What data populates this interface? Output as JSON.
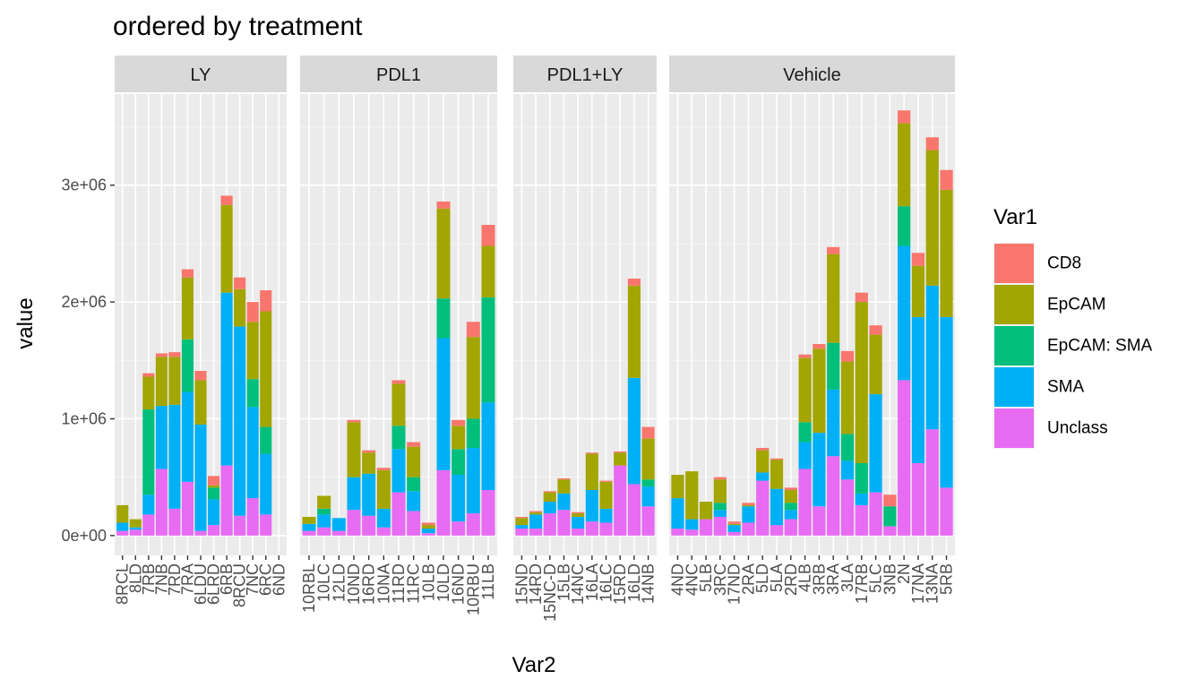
{
  "chart_data": {
    "type": "bar",
    "stacked": true,
    "title": "ordered by treatment",
    "xlabel": "Var2",
    "ylabel": "value",
    "ylim": [
      -170000,
      3780000
    ],
    "yticks": [
      {
        "value": 0,
        "label": "0e+00"
      },
      {
        "value": 1000000,
        "label": "1e+06"
      },
      {
        "value": 2000000,
        "label": "2e+06"
      },
      {
        "value": 3000000,
        "label": "3e+06"
      }
    ],
    "series_order": [
      "Unclass",
      "SMA",
      "EpCAM: SMA",
      "EpCAM",
      "CD8"
    ],
    "legend": {
      "title": "Var1",
      "position": "right",
      "entries": [
        {
          "name": "CD8",
          "color": "#F8766D"
        },
        {
          "name": "EpCAM",
          "color": "#A3A500"
        },
        {
          "name": "EpCAM: SMA",
          "color": "#00BF7D"
        },
        {
          "name": "SMA",
          "color": "#00B0F6"
        },
        {
          "name": "Unclass",
          "color": "#E76BF3"
        }
      ]
    },
    "facets": [
      {
        "name": "LY",
        "bars": [
          {
            "label": "8RCL",
            "values": [
              40000,
              70000,
              0,
              150000,
              0
            ]
          },
          {
            "label": "8LD",
            "values": [
              50000,
              20000,
              0,
              70000,
              0
            ]
          },
          {
            "label": "7RB",
            "values": [
              180000,
              170000,
              730000,
              280000,
              30000
            ]
          },
          {
            "label": "7NB",
            "values": [
              570000,
              540000,
              0,
              420000,
              30000
            ]
          },
          {
            "label": "7RD",
            "values": [
              230000,
              890000,
              0,
              410000,
              40000
            ]
          },
          {
            "label": "7RA",
            "values": [
              460000,
              770000,
              450000,
              530000,
              70000
            ]
          },
          {
            "label": "6LDU",
            "values": [
              40000,
              910000,
              0,
              380000,
              80000
            ]
          },
          {
            "label": "6LRD",
            "values": [
              90000,
              220000,
              100000,
              20000,
              80000
            ]
          },
          {
            "label": "6RB",
            "values": [
              600000,
              1480000,
              0,
              750000,
              80000
            ]
          },
          {
            "label": "8RCU",
            "values": [
              170000,
              1620000,
              0,
              320000,
              100000
            ]
          },
          {
            "label": "7NC",
            "values": [
              320000,
              780000,
              240000,
              490000,
              170000
            ]
          },
          {
            "label": "6RC",
            "values": [
              180000,
              520000,
              230000,
              990000,
              180000
            ]
          },
          {
            "label": "6ND",
            "values": [
              0,
              0,
              0,
              0,
              0
            ]
          }
        ]
      },
      {
        "name": "PDL1",
        "bars": [
          {
            "label": "10RBL",
            "values": [
              40000,
              60000,
              0,
              60000,
              0
            ]
          },
          {
            "label": "10LC",
            "values": [
              70000,
              110000,
              50000,
              110000,
              0
            ]
          },
          {
            "label": "12LD",
            "values": [
              40000,
              110000,
              0,
              0,
              0
            ]
          },
          {
            "label": "10ND",
            "values": [
              220000,
              280000,
              0,
              470000,
              20000
            ]
          },
          {
            "label": "16RD",
            "values": [
              170000,
              360000,
              0,
              180000,
              20000
            ]
          },
          {
            "label": "10NA",
            "values": [
              70000,
              160000,
              0,
              330000,
              20000
            ]
          },
          {
            "label": "11RD",
            "values": [
              370000,
              370000,
              200000,
              360000,
              30000
            ]
          },
          {
            "label": "11RC",
            "values": [
              210000,
              170000,
              120000,
              260000,
              40000
            ]
          },
          {
            "label": "10LB",
            "values": [
              20000,
              40000,
              0,
              30000,
              20000
            ]
          },
          {
            "label": "10LD",
            "values": [
              560000,
              1130000,
              340000,
              770000,
              60000
            ]
          },
          {
            "label": "16ND",
            "values": [
              120000,
              400000,
              220000,
              200000,
              50000
            ]
          },
          {
            "label": "10RBU",
            "values": [
              190000,
              560000,
              250000,
              700000,
              130000
            ]
          },
          {
            "label": "11LB",
            "values": [
              390000,
              750000,
              900000,
              440000,
              180000
            ]
          }
        ]
      },
      {
        "name": "PDL1+LY",
        "bars": [
          {
            "label": "15ND",
            "values": [
              60000,
              30000,
              0,
              60000,
              10000
            ]
          },
          {
            "label": "14RD",
            "values": [
              60000,
              120000,
              0,
              20000,
              10000
            ]
          },
          {
            "label": "15NC-D",
            "values": [
              190000,
              100000,
              0,
              80000,
              10000
            ]
          },
          {
            "label": "15LB",
            "values": [
              220000,
              140000,
              0,
              120000,
              10000
            ]
          },
          {
            "label": "14NC",
            "values": [
              60000,
              100000,
              0,
              30000,
              10000
            ]
          },
          {
            "label": "16LA",
            "values": [
              120000,
              270000,
              0,
              310000,
              10000
            ]
          },
          {
            "label": "16LC",
            "values": [
              110000,
              120000,
              0,
              230000,
              10000
            ]
          },
          {
            "label": "15RD",
            "values": [
              600000,
              0,
              0,
              110000,
              10000
            ]
          },
          {
            "label": "16LD",
            "values": [
              440000,
              910000,
              0,
              790000,
              60000
            ]
          },
          {
            "label": "14NB",
            "values": [
              250000,
              170000,
              60000,
              350000,
              100000
            ]
          }
        ]
      },
      {
        "name": "Vehicle",
        "bars": [
          {
            "label": "4ND",
            "values": [
              60000,
              260000,
              0,
              200000,
              0
            ]
          },
          {
            "label": "4NC",
            "values": [
              50000,
              90000,
              0,
              410000,
              0
            ]
          },
          {
            "label": "5LB",
            "values": [
              140000,
              0,
              0,
              150000,
              0
            ]
          },
          {
            "label": "3RC",
            "values": [
              160000,
              60000,
              60000,
              200000,
              20000
            ]
          },
          {
            "label": "17ND",
            "values": [
              30000,
              60000,
              0,
              10000,
              20000
            ]
          },
          {
            "label": "2RA",
            "values": [
              110000,
              140000,
              0,
              10000,
              20000
            ]
          },
          {
            "label": "5LD",
            "values": [
              470000,
              70000,
              0,
              190000,
              20000
            ]
          },
          {
            "label": "5LA",
            "values": [
              90000,
              310000,
              0,
              250000,
              10000
            ]
          },
          {
            "label": "2RD",
            "values": [
              140000,
              80000,
              60000,
              110000,
              20000
            ]
          },
          {
            "label": "4LB",
            "values": [
              570000,
              230000,
              170000,
              550000,
              30000
            ]
          },
          {
            "label": "3RB",
            "values": [
              250000,
              630000,
              0,
              720000,
              40000
            ]
          },
          {
            "label": "3RA",
            "values": [
              680000,
              570000,
              400000,
              760000,
              60000
            ]
          },
          {
            "label": "3LA",
            "values": [
              480000,
              160000,
              230000,
              620000,
              90000
            ]
          },
          {
            "label": "17RB",
            "values": [
              260000,
              100000,
              260000,
              1380000,
              80000
            ]
          },
          {
            "label": "5LC",
            "values": [
              370000,
              840000,
              0,
              510000,
              80000
            ]
          },
          {
            "label": "3NB",
            "values": [
              80000,
              0,
              170000,
              0,
              100000
            ]
          },
          {
            "label": "2N",
            "values": [
              1330000,
              1150000,
              340000,
              710000,
              110000
            ]
          },
          {
            "label": "17NA",
            "values": [
              620000,
              1250000,
              0,
              440000,
              110000
            ]
          },
          {
            "label": "13NA",
            "values": [
              910000,
              1230000,
              0,
              1160000,
              110000
            ]
          },
          {
            "label": "5RB",
            "values": [
              410000,
              1460000,
              0,
              1090000,
              170000
            ]
          }
        ]
      }
    ]
  }
}
